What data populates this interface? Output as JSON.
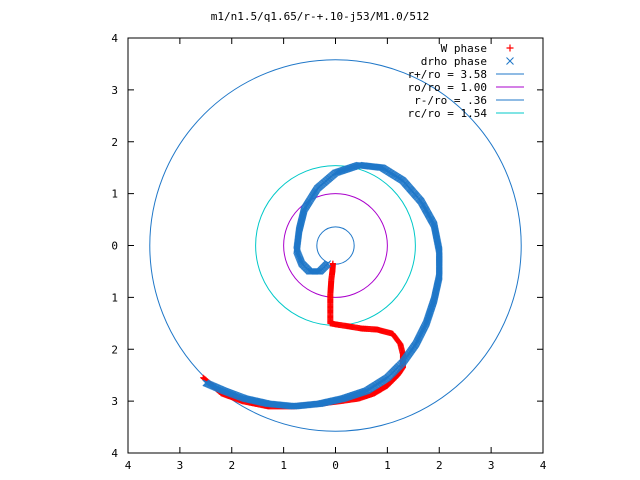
{
  "chart_data": {
    "type": "scatter",
    "title": "m1/n1.5/q1.65/r-+.10-j53/M1.0/512",
    "xlim": [
      -4,
      4
    ],
    "ylim": [
      -4,
      4
    ],
    "x_ticks": [
      -4,
      -3,
      -2,
      -1,
      0,
      1,
      2,
      3,
      4
    ],
    "y_ticks": [
      -4,
      -3,
      -2,
      -1,
      0,
      1,
      2,
      3,
      4
    ],
    "x_tick_labels": [
      "4",
      "3",
      "2",
      "1",
      "0",
      "1",
      "2",
      "3",
      "4"
    ],
    "y_tick_labels": [
      "4",
      "3",
      "2",
      "1",
      "0",
      "1",
      "2",
      "3",
      "4"
    ],
    "grid": false,
    "legend_position": "top-right",
    "series": [
      {
        "name": "W phase",
        "kind": "points",
        "marker": "+",
        "color": "#ff0000",
        "x": [
          -0.05,
          -0.06,
          -0.08,
          -0.09,
          -0.1,
          -0.1,
          -0.1,
          -0.1,
          -0.1,
          0.0,
          0.2,
          0.5,
          0.8,
          1.1,
          1.25,
          1.3,
          1.3,
          1.2,
          1.0,
          0.75,
          0.45,
          0.1,
          -0.3,
          -0.8,
          -1.3,
          -1.8,
          -2.2,
          -2.55
        ],
        "y": [
          -0.35,
          -0.5,
          -0.65,
          -0.8,
          -0.95,
          -1.1,
          -1.25,
          -1.4,
          -1.5,
          -1.52,
          -1.55,
          -1.6,
          -1.62,
          -1.7,
          -1.9,
          -2.1,
          -2.35,
          -2.5,
          -2.7,
          -2.85,
          -2.95,
          -3.0,
          -3.05,
          -3.1,
          -3.1,
          -3.0,
          -2.85,
          -2.55
        ]
      },
      {
        "name": "drho phase",
        "kind": "points",
        "marker": "x",
        "color": "#1f77c8",
        "x": [
          -0.15,
          -0.3,
          -0.5,
          -0.65,
          -0.75,
          -0.7,
          -0.6,
          -0.35,
          0.0,
          0.45,
          0.9,
          1.3,
          1.65,
          1.9,
          2.0,
          2.0,
          1.9,
          1.75,
          1.55,
          1.3,
          1.0,
          0.6,
          0.15,
          -0.3,
          -0.8,
          -1.3,
          -1.75,
          -2.15,
          -2.5
        ],
        "y": [
          -0.35,
          -0.5,
          -0.5,
          -0.35,
          -0.1,
          0.3,
          0.7,
          1.1,
          1.4,
          1.55,
          1.5,
          1.25,
          0.85,
          0.4,
          -0.1,
          -0.6,
          -1.05,
          -1.5,
          -1.9,
          -2.25,
          -2.55,
          -2.8,
          -2.95,
          -3.05,
          -3.1,
          -3.05,
          -2.95,
          -2.8,
          -2.65
        ]
      },
      {
        "name": "r+/ro = 3.58",
        "kind": "circle",
        "radius": 3.58,
        "color": "#1f77c8"
      },
      {
        "name": "ro/ro = 1.00",
        "kind": "circle",
        "radius": 1.0,
        "color": "#aa00cc"
      },
      {
        "name": "r-/ro = .36",
        "kind": "circle",
        "radius": 0.36,
        "color": "#1f77c8"
      },
      {
        "name": "rc/ro = 1.54",
        "kind": "circle",
        "radius": 1.54,
        "color": "#00c8c8"
      }
    ]
  }
}
